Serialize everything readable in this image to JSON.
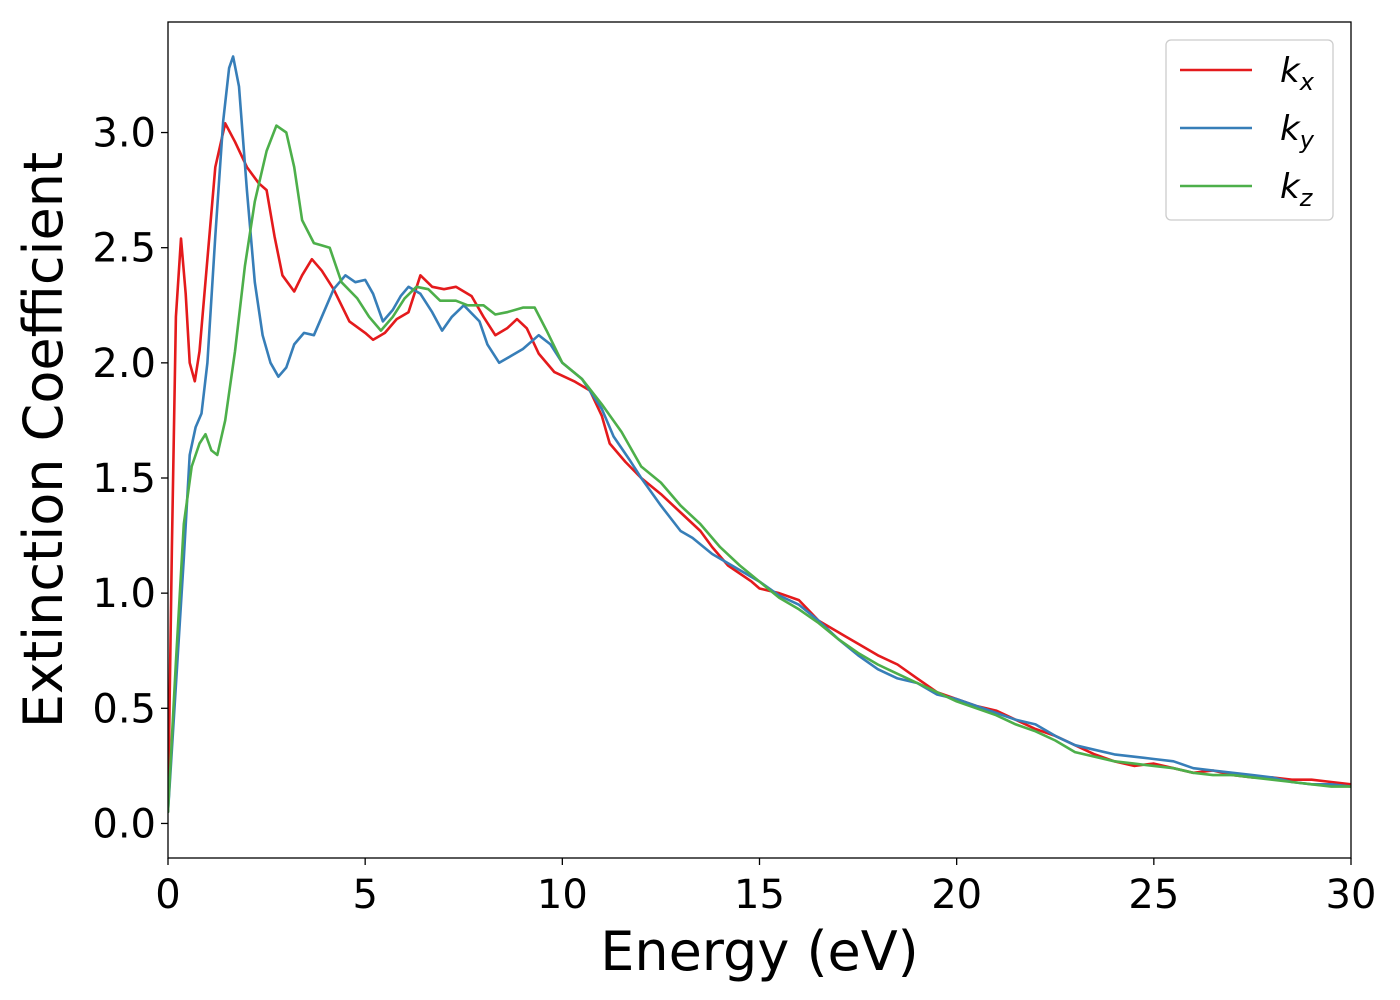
{
  "chart_data": {
    "type": "line",
    "title": "",
    "xlabel": "Energy (eV)",
    "ylabel": "Extinction Coefficient",
    "xlim": [
      0,
      30
    ],
    "ylim": [
      -0.15,
      3.48
    ],
    "xticks": [
      0,
      5,
      10,
      15,
      20,
      25,
      30
    ],
    "xtick_labels": [
      "0",
      "5",
      "10",
      "15",
      "20",
      "25",
      "30"
    ],
    "yticks": [
      0.0,
      0.5,
      1.0,
      1.5,
      2.0,
      2.5,
      3.0
    ],
    "ytick_labels": [
      "0.0",
      "0.5",
      "1.0",
      "1.5",
      "2.0",
      "2.5",
      "3.0"
    ],
    "grid": false,
    "legend_position": "top-right",
    "series": [
      {
        "name": "k_x",
        "legend_main": "k",
        "legend_sub": "x",
        "color": "#e41a1c",
        "points": [
          [
            0,
            0.05
          ],
          [
            0.1,
            1.2
          ],
          [
            0.2,
            2.2
          ],
          [
            0.33,
            2.54
          ],
          [
            0.45,
            2.3
          ],
          [
            0.55,
            2.0
          ],
          [
            0.68,
            1.92
          ],
          [
            0.8,
            2.05
          ],
          [
            1.0,
            2.45
          ],
          [
            1.2,
            2.85
          ],
          [
            1.45,
            3.04
          ],
          [
            1.7,
            2.96
          ],
          [
            2.0,
            2.85
          ],
          [
            2.3,
            2.78
          ],
          [
            2.5,
            2.75
          ],
          [
            2.7,
            2.55
          ],
          [
            2.9,
            2.38
          ],
          [
            3.2,
            2.31
          ],
          [
            3.4,
            2.38
          ],
          [
            3.65,
            2.45
          ],
          [
            3.9,
            2.4
          ],
          [
            4.2,
            2.32
          ],
          [
            4.6,
            2.18
          ],
          [
            5.0,
            2.13
          ],
          [
            5.2,
            2.1
          ],
          [
            5.5,
            2.13
          ],
          [
            5.8,
            2.19
          ],
          [
            6.1,
            2.22
          ],
          [
            6.4,
            2.38
          ],
          [
            6.7,
            2.33
          ],
          [
            7.0,
            2.32
          ],
          [
            7.3,
            2.33
          ],
          [
            7.7,
            2.29
          ],
          [
            8.0,
            2.2
          ],
          [
            8.3,
            2.12
          ],
          [
            8.6,
            2.15
          ],
          [
            8.85,
            2.19
          ],
          [
            9.1,
            2.15
          ],
          [
            9.4,
            2.04
          ],
          [
            9.8,
            1.96
          ],
          [
            10.3,
            1.92
          ],
          [
            10.7,
            1.88
          ],
          [
            11.0,
            1.77
          ],
          [
            11.2,
            1.65
          ],
          [
            11.6,
            1.57
          ],
          [
            12.0,
            1.5
          ],
          [
            12.5,
            1.43
          ],
          [
            13.0,
            1.35
          ],
          [
            13.5,
            1.27
          ],
          [
            13.8,
            1.2
          ],
          [
            14.2,
            1.12
          ],
          [
            14.8,
            1.05
          ],
          [
            15.0,
            1.02
          ],
          [
            15.5,
            1.0
          ],
          [
            16.0,
            0.97
          ],
          [
            16.5,
            0.88
          ],
          [
            17.0,
            0.83
          ],
          [
            17.5,
            0.78
          ],
          [
            18.0,
            0.73
          ],
          [
            18.5,
            0.69
          ],
          [
            19.0,
            0.63
          ],
          [
            19.5,
            0.57
          ],
          [
            20.0,
            0.54
          ],
          [
            20.5,
            0.51
          ],
          [
            21.0,
            0.49
          ],
          [
            21.5,
            0.45
          ],
          [
            22.0,
            0.41
          ],
          [
            22.5,
            0.38
          ],
          [
            23.0,
            0.34
          ],
          [
            23.5,
            0.3
          ],
          [
            24.0,
            0.27
          ],
          [
            24.5,
            0.25
          ],
          [
            25.0,
            0.26
          ],
          [
            25.5,
            0.24
          ],
          [
            26.0,
            0.22
          ],
          [
            26.5,
            0.23
          ],
          [
            27.0,
            0.21
          ],
          [
            27.5,
            0.2
          ],
          [
            28.0,
            0.2
          ],
          [
            28.5,
            0.19
          ],
          [
            29.0,
            0.19
          ],
          [
            29.5,
            0.18
          ],
          [
            30.0,
            0.17
          ]
        ]
      },
      {
        "name": "k_y",
        "legend_main": "k",
        "legend_sub": "y",
        "color": "#377eb8",
        "points": [
          [
            0,
            0.05
          ],
          [
            0.2,
            0.6
          ],
          [
            0.4,
            1.15
          ],
          [
            0.55,
            1.6
          ],
          [
            0.7,
            1.72
          ],
          [
            0.85,
            1.78
          ],
          [
            1.0,
            2.0
          ],
          [
            1.2,
            2.55
          ],
          [
            1.4,
            3.05
          ],
          [
            1.55,
            3.28
          ],
          [
            1.65,
            3.33
          ],
          [
            1.8,
            3.2
          ],
          [
            2.0,
            2.75
          ],
          [
            2.2,
            2.35
          ],
          [
            2.4,
            2.12
          ],
          [
            2.6,
            2.0
          ],
          [
            2.8,
            1.94
          ],
          [
            3.0,
            1.98
          ],
          [
            3.2,
            2.08
          ],
          [
            3.45,
            2.13
          ],
          [
            3.7,
            2.12
          ],
          [
            3.9,
            2.2
          ],
          [
            4.2,
            2.32
          ],
          [
            4.5,
            2.38
          ],
          [
            4.75,
            2.35
          ],
          [
            5.0,
            2.36
          ],
          [
            5.2,
            2.3
          ],
          [
            5.45,
            2.18
          ],
          [
            5.7,
            2.23
          ],
          [
            5.9,
            2.29
          ],
          [
            6.1,
            2.33
          ],
          [
            6.4,
            2.3
          ],
          [
            6.7,
            2.22
          ],
          [
            6.95,
            2.14
          ],
          [
            7.2,
            2.2
          ],
          [
            7.5,
            2.25
          ],
          [
            7.9,
            2.18
          ],
          [
            8.1,
            2.08
          ],
          [
            8.4,
            2.0
          ],
          [
            8.7,
            2.03
          ],
          [
            9.0,
            2.06
          ],
          [
            9.4,
            2.12
          ],
          [
            9.7,
            2.08
          ],
          [
            10.0,
            2.0
          ],
          [
            10.5,
            1.93
          ],
          [
            11.0,
            1.8
          ],
          [
            11.3,
            1.68
          ],
          [
            11.7,
            1.58
          ],
          [
            12.0,
            1.5
          ],
          [
            12.5,
            1.38
          ],
          [
            13.0,
            1.27
          ],
          [
            13.3,
            1.24
          ],
          [
            13.8,
            1.17
          ],
          [
            14.3,
            1.12
          ],
          [
            15.0,
            1.05
          ],
          [
            15.5,
            0.99
          ],
          [
            16.0,
            0.95
          ],
          [
            16.5,
            0.88
          ],
          [
            17.0,
            0.8
          ],
          [
            17.5,
            0.73
          ],
          [
            18.0,
            0.67
          ],
          [
            18.5,
            0.63
          ],
          [
            19.0,
            0.61
          ],
          [
            19.5,
            0.56
          ],
          [
            20.0,
            0.54
          ],
          [
            20.5,
            0.51
          ],
          [
            21.0,
            0.48
          ],
          [
            21.5,
            0.45
          ],
          [
            22.0,
            0.43
          ],
          [
            22.5,
            0.38
          ],
          [
            23.0,
            0.34
          ],
          [
            23.5,
            0.32
          ],
          [
            24.0,
            0.3
          ],
          [
            24.5,
            0.29
          ],
          [
            25.0,
            0.28
          ],
          [
            25.5,
            0.27
          ],
          [
            26.0,
            0.24
          ],
          [
            26.5,
            0.23
          ],
          [
            27.0,
            0.22
          ],
          [
            27.5,
            0.21
          ],
          [
            28.0,
            0.2
          ],
          [
            28.5,
            0.18
          ],
          [
            29.0,
            0.17
          ],
          [
            29.5,
            0.17
          ],
          [
            30.0,
            0.16
          ]
        ]
      },
      {
        "name": "k_z",
        "legend_main": "k",
        "legend_sub": "z",
        "color": "#4daf4a",
        "points": [
          [
            0,
            0.05
          ],
          [
            0.2,
            0.7
          ],
          [
            0.4,
            1.3
          ],
          [
            0.6,
            1.55
          ],
          [
            0.8,
            1.65
          ],
          [
            0.95,
            1.69
          ],
          [
            1.1,
            1.62
          ],
          [
            1.25,
            1.6
          ],
          [
            1.45,
            1.75
          ],
          [
            1.7,
            2.05
          ],
          [
            1.95,
            2.42
          ],
          [
            2.2,
            2.7
          ],
          [
            2.5,
            2.92
          ],
          [
            2.75,
            3.03
          ],
          [
            3.0,
            3.0
          ],
          [
            3.2,
            2.85
          ],
          [
            3.4,
            2.62
          ],
          [
            3.7,
            2.52
          ],
          [
            3.9,
            2.51
          ],
          [
            4.1,
            2.5
          ],
          [
            4.4,
            2.35
          ],
          [
            4.8,
            2.28
          ],
          [
            5.1,
            2.2
          ],
          [
            5.4,
            2.14
          ],
          [
            5.7,
            2.2
          ],
          [
            6.0,
            2.28
          ],
          [
            6.3,
            2.33
          ],
          [
            6.6,
            2.32
          ],
          [
            6.9,
            2.27
          ],
          [
            7.3,
            2.27
          ],
          [
            7.6,
            2.25
          ],
          [
            8.0,
            2.25
          ],
          [
            8.3,
            2.21
          ],
          [
            8.6,
            2.22
          ],
          [
            9.0,
            2.24
          ],
          [
            9.3,
            2.24
          ],
          [
            9.6,
            2.14
          ],
          [
            10.0,
            2.0
          ],
          [
            10.5,
            1.93
          ],
          [
            11.0,
            1.82
          ],
          [
            11.5,
            1.7
          ],
          [
            12.0,
            1.55
          ],
          [
            12.5,
            1.48
          ],
          [
            13.0,
            1.38
          ],
          [
            13.5,
            1.3
          ],
          [
            14.0,
            1.2
          ],
          [
            14.5,
            1.12
          ],
          [
            15.0,
            1.05
          ],
          [
            15.5,
            0.98
          ],
          [
            16.0,
            0.93
          ],
          [
            16.5,
            0.87
          ],
          [
            17.0,
            0.8
          ],
          [
            17.5,
            0.74
          ],
          [
            18.0,
            0.69
          ],
          [
            18.5,
            0.65
          ],
          [
            19.0,
            0.61
          ],
          [
            19.5,
            0.57
          ],
          [
            20.0,
            0.53
          ],
          [
            20.5,
            0.5
          ],
          [
            21.0,
            0.47
          ],
          [
            21.5,
            0.43
          ],
          [
            22.0,
            0.4
          ],
          [
            22.5,
            0.36
          ],
          [
            23.0,
            0.31
          ],
          [
            23.5,
            0.29
          ],
          [
            24.0,
            0.27
          ],
          [
            24.5,
            0.26
          ],
          [
            25.0,
            0.25
          ],
          [
            25.5,
            0.24
          ],
          [
            26.0,
            0.22
          ],
          [
            26.5,
            0.21
          ],
          [
            27.0,
            0.21
          ],
          [
            27.5,
            0.2
          ],
          [
            28.0,
            0.19
          ],
          [
            28.5,
            0.18
          ],
          [
            29.0,
            0.17
          ],
          [
            29.5,
            0.16
          ],
          [
            30.0,
            0.16
          ]
        ]
      }
    ]
  }
}
